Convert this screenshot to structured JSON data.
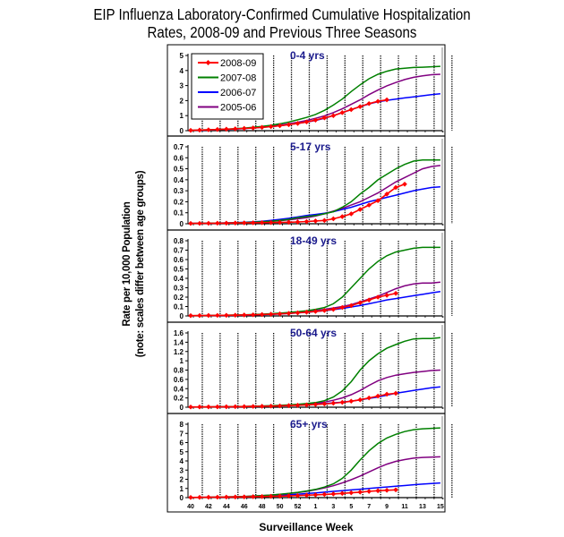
{
  "title_line1": "EIP Influenza Laboratory-Confirmed Cumulative Hospitalization",
  "title_line2": "Rates, 2008-09 and Previous Three Seasons",
  "chart_data": {
    "type": "line",
    "title": "EIP Influenza Laboratory-Confirmed Cumulative Hospitalization Rates, 2008-09 and Previous Three Seasons",
    "xlabel": "Surveillance Week",
    "ylabel": "Rate per 10,000 Population",
    "ylabel_note": "(note: scales differ between age groups)",
    "x_weeks": [
      40,
      41,
      42,
      43,
      44,
      45,
      46,
      47,
      48,
      49,
      50,
      51,
      52,
      1,
      2,
      3,
      4,
      5,
      6,
      7,
      8,
      9,
      10,
      11,
      12,
      13,
      14,
      15,
      16,
      17
    ],
    "x_tick_labels": [
      "40",
      "42",
      "44",
      "46",
      "48",
      "50",
      "52",
      "1",
      "3",
      "5",
      "7",
      "9",
      "11",
      "13",
      "15"
    ],
    "legend": {
      "placement": "top-left",
      "entries": [
        "2008-09",
        "2007-08",
        "2006-07",
        "2005-06"
      ]
    },
    "series_colors": {
      "2008-09": "#ff0000",
      "2007-08": "#008000",
      "2006-07": "#0000ff",
      "2005-06": "#800080"
    },
    "panels": [
      {
        "label": "0-4 yrs",
        "ylim": [
          0,
          5
        ],
        "yticks": [
          "0",
          "1",
          "2",
          "3",
          "4",
          "5"
        ],
        "series": [
          {
            "name": "2008-09",
            "values": [
              0.02,
              0.04,
              0.06,
              0.08,
              0.1,
              0.12,
              0.15,
              0.18,
              0.22,
              0.27,
              0.33,
              0.4,
              0.48,
              0.58,
              0.7,
              0.85,
              1.0,
              1.2,
              1.4,
              1.6,
              1.8,
              1.95,
              2.05
            ]
          },
          {
            "name": "2007-08",
            "values": [
              0.02,
              0.04,
              0.06,
              0.08,
              0.1,
              0.13,
              0.17,
              0.22,
              0.28,
              0.36,
              0.46,
              0.58,
              0.72,
              0.88,
              1.08,
              1.35,
              1.7,
              2.1,
              2.6,
              3.05,
              3.45,
              3.75,
              3.95,
              4.1,
              4.15,
              4.2,
              4.22,
              4.25,
              4.28
            ]
          },
          {
            "name": "2006-07",
            "values": [
              0.02,
              0.03,
              0.05,
              0.07,
              0.09,
              0.11,
              0.14,
              0.18,
              0.22,
              0.27,
              0.33,
              0.4,
              0.48,
              0.57,
              0.68,
              0.82,
              1.0,
              1.2,
              1.4,
              1.6,
              1.78,
              1.92,
              2.02,
              2.1,
              2.18,
              2.25,
              2.32,
              2.4,
              2.45
            ]
          },
          {
            "name": "2005-06",
            "values": [
              0.02,
              0.03,
              0.05,
              0.07,
              0.09,
              0.12,
              0.15,
              0.19,
              0.24,
              0.3,
              0.37,
              0.46,
              0.56,
              0.68,
              0.82,
              0.98,
              1.2,
              1.45,
              1.75,
              2.05,
              2.4,
              2.7,
              2.98,
              3.2,
              3.4,
              3.55,
              3.65,
              3.72,
              3.75
            ]
          }
        ]
      },
      {
        "label": "5-17 yrs",
        "ylim": [
          0,
          0.7
        ],
        "yticks": [
          "0",
          "0.1",
          "0.2",
          "0.3",
          "0.4",
          "0.5",
          "0.6",
          "0.7"
        ],
        "series": [
          {
            "name": "2008-09",
            "values": [
              0.003,
              0.003,
              0.004,
              0.005,
              0.006,
              0.007,
              0.008,
              0.009,
              0.01,
              0.011,
              0.012,
              0.014,
              0.016,
              0.02,
              0.025,
              0.03,
              0.045,
              0.065,
              0.09,
              0.13,
              0.17,
              0.21,
              0.27,
              0.33,
              0.36
            ]
          },
          {
            "name": "2007-08",
            "values": [
              0.003,
              0.004,
              0.005,
              0.006,
              0.007,
              0.009,
              0.011,
              0.014,
              0.018,
              0.023,
              0.03,
              0.04,
              0.055,
              0.065,
              0.075,
              0.09,
              0.11,
              0.15,
              0.2,
              0.27,
              0.33,
              0.4,
              0.45,
              0.5,
              0.54,
              0.57,
              0.58,
              0.58,
              0.58
            ]
          },
          {
            "name": "2006-07",
            "values": [
              0.003,
              0.004,
              0.005,
              0.006,
              0.008,
              0.01,
              0.013,
              0.017,
              0.022,
              0.03,
              0.04,
              0.05,
              0.062,
              0.075,
              0.085,
              0.095,
              0.11,
              0.13,
              0.15,
              0.175,
              0.2,
              0.22,
              0.24,
              0.26,
              0.28,
              0.3,
              0.315,
              0.33,
              0.335
            ]
          },
          {
            "name": "2005-06",
            "values": [
              0.002,
              0.003,
              0.004,
              0.005,
              0.006,
              0.008,
              0.01,
              0.013,
              0.017,
              0.022,
              0.028,
              0.036,
              0.045,
              0.055,
              0.07,
              0.09,
              0.115,
              0.14,
              0.17,
              0.2,
              0.24,
              0.28,
              0.33,
              0.38,
              0.42,
              0.46,
              0.5,
              0.52,
              0.53
            ]
          }
        ]
      },
      {
        "label": "18-49 yrs",
        "ylim": [
          0,
          0.8
        ],
        "yticks": [
          "0",
          "0.1",
          "0.2",
          "0.3",
          "0.4",
          "0.5",
          "0.6",
          "0.7",
          "0.8"
        ],
        "series": [
          {
            "name": "2008-09",
            "values": [
              0.003,
              0.004,
              0.005,
              0.006,
              0.007,
              0.008,
              0.01,
              0.012,
              0.015,
              0.018,
              0.022,
              0.027,
              0.033,
              0.04,
              0.048,
              0.058,
              0.07,
              0.09,
              0.11,
              0.14,
              0.17,
              0.2,
              0.22,
              0.24
            ]
          },
          {
            "name": "2007-08",
            "values": [
              0.003,
              0.004,
              0.005,
              0.006,
              0.008,
              0.01,
              0.012,
              0.015,
              0.019,
              0.024,
              0.03,
              0.037,
              0.045,
              0.055,
              0.07,
              0.09,
              0.13,
              0.2,
              0.3,
              0.4,
              0.5,
              0.58,
              0.64,
              0.68,
              0.7,
              0.72,
              0.73,
              0.73,
              0.73
            ]
          },
          {
            "name": "2006-07",
            "values": [
              0.002,
              0.003,
              0.004,
              0.005,
              0.006,
              0.007,
              0.009,
              0.011,
              0.014,
              0.017,
              0.021,
              0.026,
              0.032,
              0.039,
              0.047,
              0.056,
              0.067,
              0.08,
              0.095,
              0.11,
              0.13,
              0.15,
              0.17,
              0.185,
              0.2,
              0.215,
              0.23,
              0.245,
              0.26
            ]
          },
          {
            "name": "2005-06",
            "values": [
              0.002,
              0.003,
              0.004,
              0.005,
              0.006,
              0.008,
              0.01,
              0.012,
              0.015,
              0.019,
              0.024,
              0.03,
              0.037,
              0.046,
              0.057,
              0.07,
              0.085,
              0.1,
              0.12,
              0.15,
              0.18,
              0.21,
              0.25,
              0.29,
              0.32,
              0.34,
              0.35,
              0.35,
              0.36
            ]
          }
        ]
      },
      {
        "label": "50-64 yrs",
        "ylim": [
          0,
          1.6
        ],
        "yticks": [
          "0",
          "0.2",
          "0.4",
          "0.6",
          "0.8",
          "1",
          "1.2",
          "1.4",
          "1.6"
        ],
        "series": [
          {
            "name": "2008-09",
            "values": [
              0.005,
              0.006,
              0.007,
              0.008,
              0.01,
              0.012,
              0.014,
              0.017,
              0.02,
              0.024,
              0.029,
              0.035,
              0.042,
              0.05,
              0.06,
              0.072,
              0.087,
              0.105,
              0.13,
              0.16,
              0.2,
              0.24,
              0.28,
              0.3
            ]
          },
          {
            "name": "2007-08",
            "values": [
              0.005,
              0.006,
              0.008,
              0.01,
              0.012,
              0.015,
              0.018,
              0.022,
              0.027,
              0.033,
              0.04,
              0.05,
              0.062,
              0.08,
              0.1,
              0.14,
              0.22,
              0.35,
              0.55,
              0.8,
              1.0,
              1.15,
              1.27,
              1.35,
              1.42,
              1.47,
              1.48,
              1.48,
              1.5
            ]
          },
          {
            "name": "2006-07",
            "values": [
              0.004,
              0.005,
              0.006,
              0.008,
              0.01,
              0.012,
              0.015,
              0.018,
              0.022,
              0.027,
              0.033,
              0.04,
              0.048,
              0.057,
              0.068,
              0.08,
              0.095,
              0.11,
              0.13,
              0.16,
              0.19,
              0.22,
              0.26,
              0.3,
              0.33,
              0.36,
              0.39,
              0.42,
              0.44
            ]
          },
          {
            "name": "2005-06",
            "values": [
              0.004,
              0.005,
              0.006,
              0.008,
              0.01,
              0.012,
              0.015,
              0.019,
              0.024,
              0.03,
              0.037,
              0.046,
              0.057,
              0.07,
              0.085,
              0.11,
              0.15,
              0.2,
              0.27,
              0.36,
              0.47,
              0.57,
              0.64,
              0.69,
              0.72,
              0.75,
              0.77,
              0.79,
              0.8
            ]
          }
        ]
      },
      {
        "label": "65+ yrs",
        "ylim": [
          0,
          8
        ],
        "yticks": [
          "0",
          "1",
          "2",
          "3",
          "4",
          "5",
          "6",
          "7",
          "8"
        ],
        "series": [
          {
            "name": "2008-09",
            "values": [
              0.02,
              0.03,
              0.04,
              0.05,
              0.06,
              0.07,
              0.08,
              0.1,
              0.12,
              0.14,
              0.16,
              0.19,
              0.22,
              0.26,
              0.3,
              0.35,
              0.4,
              0.46,
              0.53,
              0.6,
              0.68,
              0.75,
              0.8,
              0.85
            ]
          },
          {
            "name": "2007-08",
            "values": [
              0.02,
              0.03,
              0.04,
              0.06,
              0.08,
              0.1,
              0.13,
              0.17,
              0.22,
              0.28,
              0.36,
              0.46,
              0.58,
              0.72,
              0.9,
              1.15,
              1.5,
              2.1,
              3.0,
              4.1,
              5.1,
              5.9,
              6.5,
              6.9,
              7.2,
              7.4,
              7.5,
              7.55,
              7.6
            ]
          },
          {
            "name": "2006-07",
            "values": [
              0.02,
              0.03,
              0.04,
              0.05,
              0.06,
              0.08,
              0.1,
              0.12,
              0.15,
              0.19,
              0.24,
              0.3,
              0.37,
              0.45,
              0.52,
              0.6,
              0.68,
              0.76,
              0.84,
              0.92,
              1.0,
              1.08,
              1.16,
              1.24,
              1.32,
              1.4,
              1.47,
              1.53,
              1.6
            ]
          },
          {
            "name": "2005-06",
            "values": [
              0.02,
              0.03,
              0.04,
              0.06,
              0.08,
              0.1,
              0.13,
              0.17,
              0.22,
              0.28,
              0.35,
              0.44,
              0.55,
              0.68,
              0.85,
              1.05,
              1.3,
              1.6,
              1.95,
              2.35,
              2.8,
              3.25,
              3.65,
              3.95,
              4.15,
              4.3,
              4.38,
              4.42,
              4.45
            ]
          }
        ]
      }
    ]
  }
}
